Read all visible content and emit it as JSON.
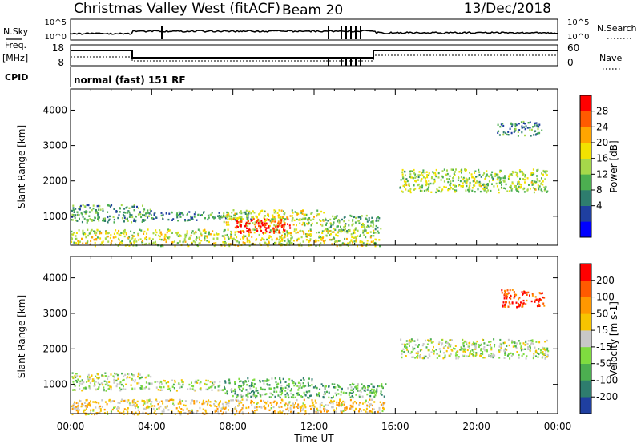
{
  "header": {
    "station": "Christmas Valley West (fitACF)",
    "beam": "Beam 20",
    "date": "13/Dec/2018"
  },
  "strip_labels": {
    "nsky": "N.Sky",
    "nsky_ticks": [
      "10^5",
      "10^0"
    ],
    "nsearch": "N.Search",
    "nsearch_ticks": [
      "10^5",
      "10^0"
    ],
    "freq": "Freq.",
    "freq_unit": "[MHz]",
    "freq_ticks": [
      "18",
      "8"
    ],
    "nave": "Nave",
    "nave_ticks": [
      "60",
      "0"
    ],
    "cpid": "CPID",
    "cpid_value": "normal (fast) 151 RF"
  },
  "chart_data": [
    {
      "type": "heatmap",
      "panel": "power",
      "ylabel": "Slant Range [km]",
      "yticks": [
        "4000",
        "3000",
        "2000",
        "1000"
      ],
      "ylim": [
        180,
        4600
      ],
      "xlim": [
        0,
        24
      ],
      "colorbar_label": "Power [dB]",
      "colorbar_ticks": [
        "28",
        "24",
        "20",
        "16",
        "12",
        "8",
        "4"
      ],
      "colors": [
        "#0000ff",
        "#1f3fa0",
        "#2e7d6e",
        "#4caf50",
        "#a6d84a",
        "#f2e200",
        "#ffa500",
        "#ff5a00",
        "#ff0000"
      ],
      "regions": [
        {
          "x": [
            0.0,
            15.2
          ],
          "y": [
            180,
            650
          ],
          "level": 0.55
        },
        {
          "x": [
            0.0,
            4.0
          ],
          "y": [
            850,
            1350
          ],
          "level": 0.35
        },
        {
          "x": [
            4.0,
            9.0
          ],
          "y": [
            900,
            1150
          ],
          "level": 0.3
        },
        {
          "x": [
            7.5,
            12.5
          ],
          "y": [
            750,
            1200
          ],
          "level": 0.55
        },
        {
          "x": [
            8.0,
            10.8
          ],
          "y": [
            550,
            950
          ],
          "level": 0.95
        },
        {
          "x": [
            12.5,
            15.3
          ],
          "y": [
            600,
            1050
          ],
          "level": 0.4
        },
        {
          "x": [
            16.2,
            23.5
          ],
          "y": [
            1700,
            2350
          ],
          "level": 0.5
        },
        {
          "x": [
            21.0,
            23.2
          ],
          "y": [
            3300,
            3700
          ],
          "level": 0.3
        }
      ]
    },
    {
      "type": "heatmap",
      "panel": "velocity",
      "ylabel": "Slant Range [km]",
      "yticks": [
        "4000",
        "3000",
        "2000",
        "1000"
      ],
      "ylim": [
        180,
        4600
      ],
      "xlim": [
        0,
        24
      ],
      "colorbar_label": "Velocity [m s-1]",
      "colorbar_ticks": [
        "200",
        "100",
        "50",
        "15",
        "-15",
        "-50",
        "-100",
        "-200"
      ],
      "colors": [
        "#1f3fa0",
        "#2e7d6e",
        "#4caf50",
        "#7fdc3f",
        "#c8c8c8",
        "#f7c400",
        "#ff9800",
        "#ff5a00",
        "#ff0000"
      ],
      "regions": [
        {
          "x": [
            0.0,
            4.0
          ],
          "y": [
            850,
            1350
          ],
          "level": 0.45
        },
        {
          "x": [
            4.0,
            7.5
          ],
          "y": [
            850,
            1150
          ],
          "level": 0.45
        },
        {
          "x": [
            7.5,
            12.0
          ],
          "y": [
            650,
            1200
          ],
          "level": 0.3
        },
        {
          "x": [
            12.0,
            15.5
          ],
          "y": [
            650,
            1050
          ],
          "level": 0.3
        },
        {
          "x": [
            0.0,
            15.5
          ],
          "y": [
            180,
            600
          ],
          "level": 0.6
        },
        {
          "x": [
            16.2,
            23.5
          ],
          "y": [
            1750,
            2300
          ],
          "level": 0.45
        },
        {
          "x": [
            21.2,
            23.3
          ],
          "y": [
            3200,
            3700
          ],
          "level": 0.9
        }
      ]
    }
  ],
  "xaxis": {
    "ticks": [
      "00:00",
      "04:00",
      "08:00",
      "12:00",
      "16:00",
      "20:00",
      "00:00"
    ],
    "label": "Time UT"
  }
}
